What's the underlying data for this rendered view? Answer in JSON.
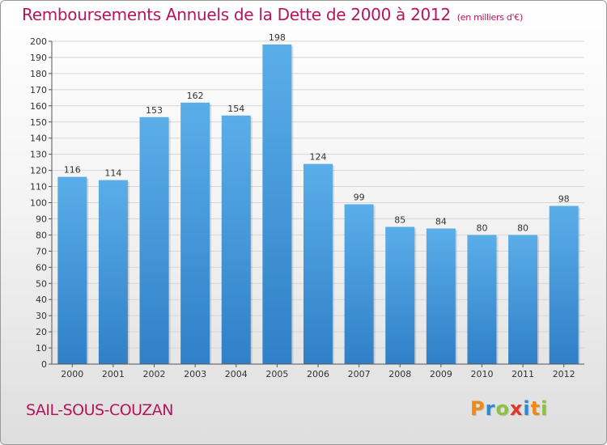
{
  "title": "Remboursements Annuels de la Dette de 2000 à 2012",
  "subtitle": "(en milliers d'€)",
  "commune": "SAIL-SOUS-COUZAN",
  "logo": {
    "text": "Proxiti",
    "colors": [
      "#f08a16",
      "#2b8ad0",
      "#8bc23f",
      "#e3372a",
      "#2b8ad0",
      "#f08a16",
      "#8bc23f"
    ]
  },
  "colors": {
    "bar": "#3b8fd6",
    "bar_light": "#5aaee8",
    "title": "#b5155a"
  },
  "chart_data": {
    "type": "bar",
    "categories": [
      "2000",
      "2001",
      "2002",
      "2003",
      "2004",
      "2005",
      "2006",
      "2007",
      "2008",
      "2009",
      "2010",
      "2011",
      "2012"
    ],
    "values": [
      116,
      114,
      153,
      162,
      154,
      198,
      124,
      99,
      85,
      84,
      80,
      80,
      98
    ],
    "ylim": [
      0,
      200
    ],
    "ytick_step": 10,
    "grid": true,
    "data_labels": true
  }
}
